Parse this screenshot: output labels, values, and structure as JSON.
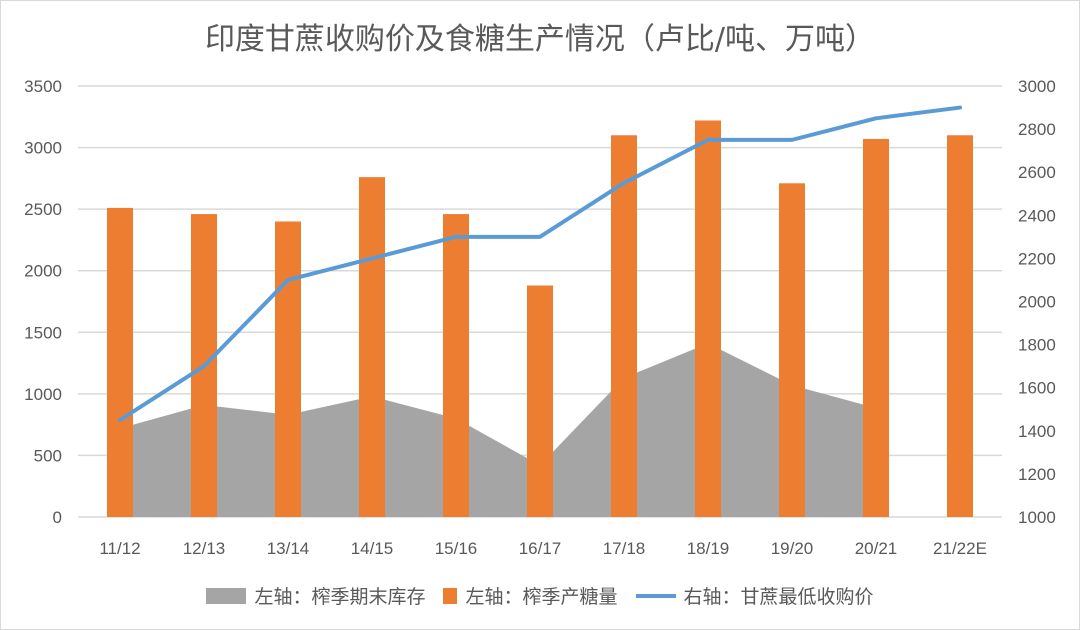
{
  "chart_data": {
    "type": "bar",
    "title": "印度甘蔗收购价及食糖生产情况（卢比/吨、万吨）",
    "categories": [
      "11/12",
      "12/13",
      "13/14",
      "14/15",
      "15/16",
      "16/17",
      "17/18",
      "18/19",
      "19/20",
      "20/21",
      "21/22E"
    ],
    "left_axis": {
      "ylim": [
        0,
        3500
      ],
      "ticks": [
        0,
        500,
        1000,
        1500,
        2000,
        2500,
        3000,
        3500
      ]
    },
    "right_axis": {
      "ylim": [
        1000,
        3000
      ],
      "ticks": [
        1000,
        1200,
        1400,
        1600,
        1800,
        2000,
        2200,
        2400,
        2600,
        2800,
        3000
      ]
    },
    "grid": true,
    "legend_position": "bottom",
    "series": [
      {
        "name": "左轴：榨季期末库存",
        "type": "area",
        "axis": "left",
        "color": "#a5a5a5",
        "values": [
          720,
          910,
          830,
          980,
          800,
          420,
          1130,
          1410,
          1070,
          885,
          null
        ]
      },
      {
        "name": "左轴：榨季产糖量",
        "type": "bar",
        "axis": "left",
        "color": "#ed7d31",
        "values": [
          2510,
          2460,
          2400,
          2760,
          2460,
          1880,
          3100,
          3220,
          2710,
          3070,
          3100
        ]
      },
      {
        "name": "右轴：甘蔗最低收购价",
        "type": "line",
        "axis": "right",
        "color": "#5b9bd5",
        "values": [
          1450,
          1700,
          2100,
          2200,
          2300,
          2300,
          2550,
          2750,
          2750,
          2850,
          2900
        ]
      }
    ]
  }
}
